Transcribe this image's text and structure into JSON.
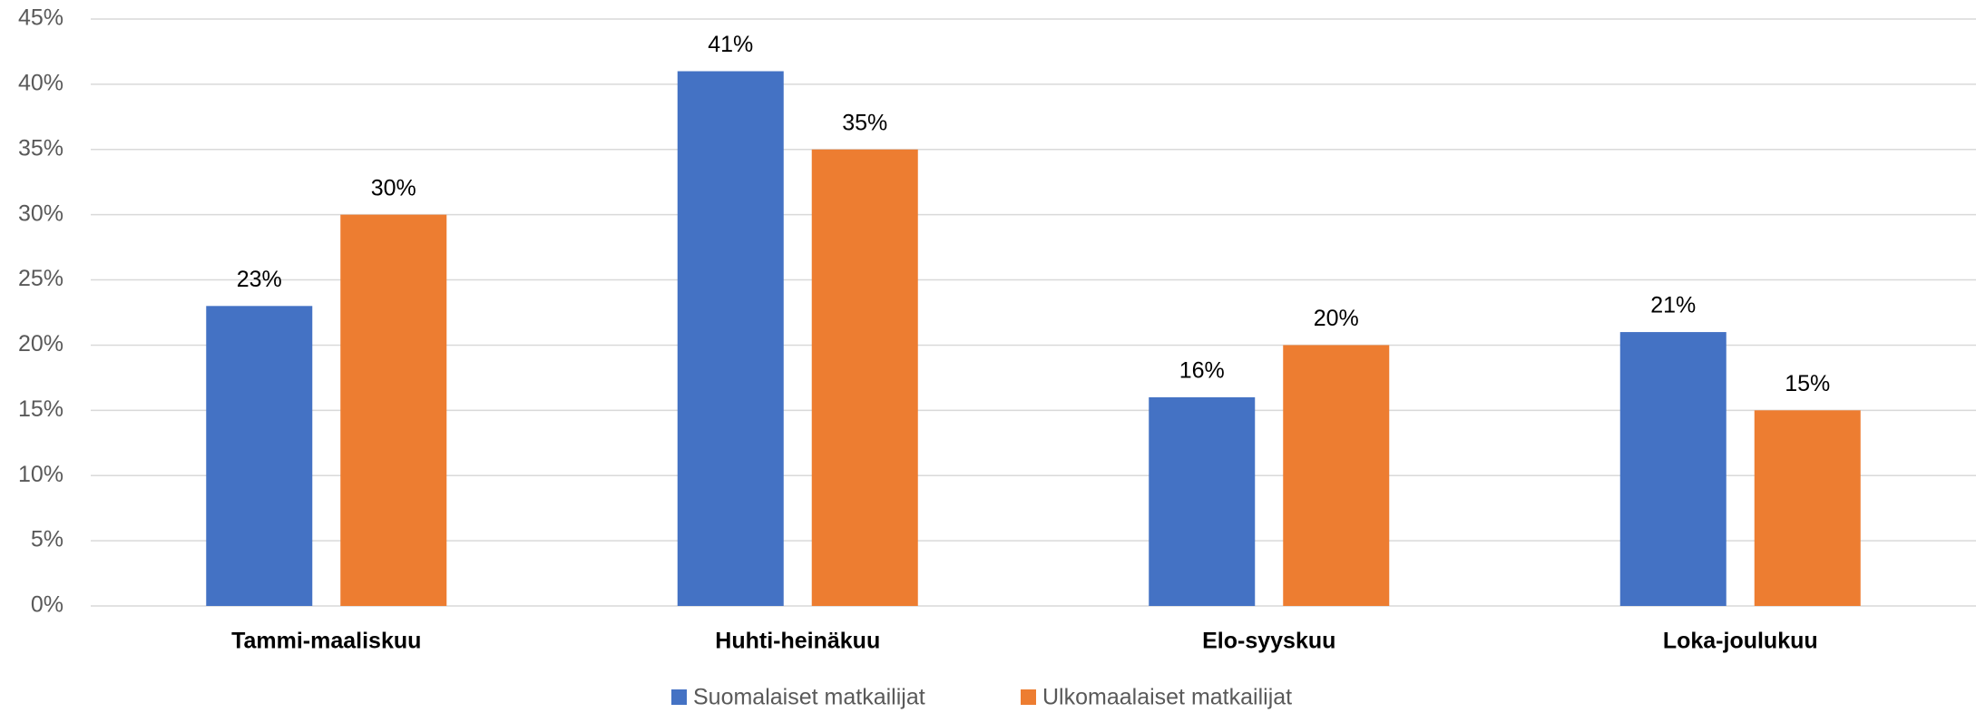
{
  "chart_data": {
    "type": "bar",
    "categories": [
      "Tammi-maaliskuu",
      "Huhti-heinäkuu",
      "Elo-syyskuu",
      "Loka-joulukuu"
    ],
    "series": [
      {
        "name": "Suomalaiset matkailijat",
        "color": "#4472c4",
        "values": [
          23,
          41,
          16,
          21
        ],
        "value_labels": [
          "23%",
          "41%",
          "16%",
          "21%"
        ]
      },
      {
        "name": "Ulkomaalaiset matkailijat",
        "color": "#ed7d31",
        "values": [
          30,
          35,
          20,
          15
        ],
        "value_labels": [
          "30%",
          "35%",
          "20%",
          "15%"
        ]
      }
    ],
    "ylim": [
      0,
      45
    ],
    "yticks": [
      {
        "value": 0,
        "label": "0%"
      },
      {
        "value": 5,
        "label": "5%"
      },
      {
        "value": 10,
        "label": "10%"
      },
      {
        "value": 15,
        "label": "15%"
      },
      {
        "value": 20,
        "label": "20%"
      },
      {
        "value": 25,
        "label": "25%"
      },
      {
        "value": 30,
        "label": "30%"
      },
      {
        "value": 35,
        "label": "35%"
      },
      {
        "value": 40,
        "label": "40%"
      },
      {
        "value": 45,
        "label": "45%"
      }
    ],
    "grid": true,
    "legend": "bottom"
  }
}
